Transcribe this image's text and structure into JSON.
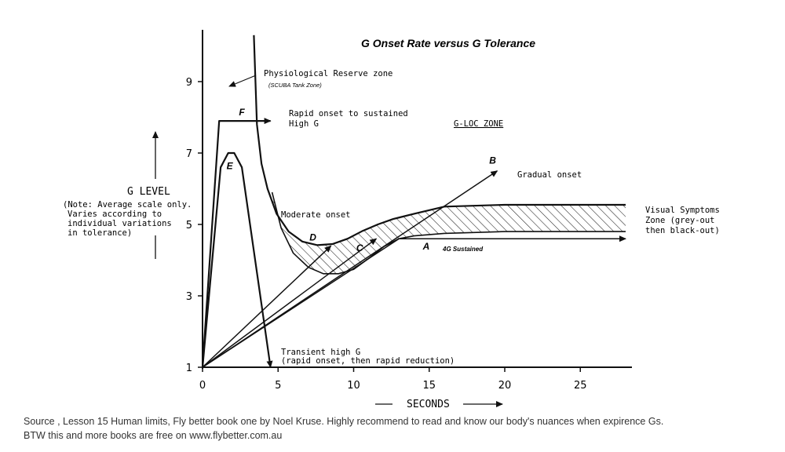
{
  "chart_data": {
    "type": "line",
    "title": "G Onset Rate versus G Tolerance",
    "xlabel": "SECONDS",
    "ylabel": "G LEVEL",
    "ylabel_note": [
      "(Note: Average scale only.",
      "Varies according to",
      "individual variations",
      "in tolerance)"
    ],
    "xlim": [
      0,
      28
    ],
    "ylim": [
      1,
      10
    ],
    "x_ticks": [
      0,
      5,
      10,
      15,
      20,
      25
    ],
    "y_ticks": [
      1,
      3,
      5,
      7,
      9
    ],
    "grid": false,
    "series": [
      {
        "name": "A",
        "x": [
          0,
          13,
          28
        ],
        "y": [
          1,
          4.6,
          4.6
        ]
      },
      {
        "name": "B",
        "x": [
          0,
          19.5
        ],
        "y": [
          1,
          6.5
        ]
      },
      {
        "name": "C",
        "x": [
          0,
          11.5
        ],
        "y": [
          1,
          4.6
        ]
      },
      {
        "name": "D",
        "x": [
          0,
          8.5
        ],
        "y": [
          1,
          4.4
        ]
      },
      {
        "name": "E",
        "x": [
          0,
          1.2,
          1.7,
          2.1,
          2.6,
          4.5
        ],
        "y": [
          1,
          6.6,
          7.0,
          7.0,
          6.6,
          1.0
        ]
      },
      {
        "name": "F",
        "x": [
          0,
          1.1,
          4.5
        ],
        "y": [
          1,
          7.9,
          7.9
        ]
      }
    ],
    "tolerance_boundary": {
      "x": [
        3.4,
        3.6,
        3.9,
        4.3,
        4.9,
        5.7,
        6.6,
        7.6,
        8.6,
        9.6,
        10.6,
        11.6,
        12.6,
        14,
        16,
        20,
        28
      ],
      "y": [
        10.3,
        7.8,
        6.7,
        6.0,
        5.3,
        4.8,
        4.52,
        4.42,
        4.45,
        4.6,
        4.82,
        5.0,
        5.15,
        5.3,
        5.5,
        5.55,
        5.55
      ]
    },
    "lower_boundary": {
      "x": [
        4.6,
        5.2,
        6.0,
        7.0,
        8.0,
        9.0,
        10.0,
        11.0,
        12.0,
        13.0,
        14,
        16,
        20,
        28
      ],
      "y": [
        5.9,
        4.9,
        4.2,
        3.8,
        3.62,
        3.62,
        3.74,
        4.05,
        4.38,
        4.6,
        4.68,
        4.75,
        4.8,
        4.8
      ]
    },
    "annotations": {
      "reserve": "Physiological Reserve zone",
      "reserve_sub": "(SCUBA Tank Zone)",
      "rapid_1": "Rapid onset to sustained",
      "rapid_2": "High G",
      "gloc": "G-LOC ZONE",
      "gradual": "Gradual onset",
      "moderate": "Moderate onset",
      "sustained": "4G Sustained",
      "visual_1": "Visual Symptoms",
      "visual_2": "Zone (grey-out",
      "visual_3": "then black-out)",
      "transient_1": "Transient high G",
      "transient_2": "(rapid onset, then rapid reduction)"
    }
  },
  "caption": {
    "line1": "Source , Lesson 15 Human limits, Fly better book one by Noel Kruse. Highly recommend to read and know  our body's nuances when expirence Gs.",
    "line2": "BTW this and more books are free on www.flybetter.com.au"
  }
}
